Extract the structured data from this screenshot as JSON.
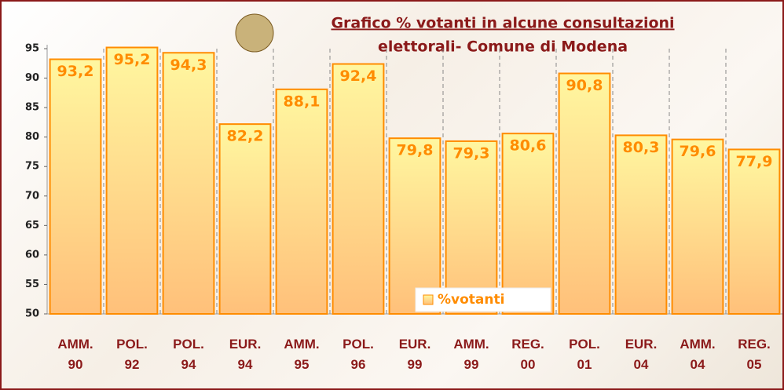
{
  "chart_data": {
    "type": "bar",
    "title": "Grafico % votanti in alcune consultazioni",
    "subtitle": "elettorali- Comune di Modena",
    "categories": [
      "AMM.\n90",
      "POL.\n92",
      "POL.\n94",
      "EUR.\n94",
      "AMM.\n95",
      "POL.\n96",
      "EUR.\n99",
      "AMM.\n99",
      "REG.\n00",
      "POL.\n01",
      "EUR.\n04",
      "AMM.\n04",
      "REG.\n05"
    ],
    "series": [
      {
        "name": "%votanti",
        "color": "#ff8c00",
        "values": [
          93.2,
          95.2,
          94.3,
          82.2,
          88.1,
          92.4,
          79.8,
          79.3,
          80.6,
          90.8,
          80.3,
          79.6,
          77.9
        ],
        "value_labels": [
          "93,2",
          "95,2",
          "94,3",
          "82,2",
          "88,1",
          "92,4",
          "79,8",
          "79,3",
          "80,6",
          "90,8",
          "80,3",
          "79,6",
          "77,9"
        ]
      }
    ],
    "ylim": [
      50,
      95
    ],
    "yticks": [
      50,
      55,
      60,
      65,
      70,
      75,
      80,
      85,
      90,
      95
    ],
    "legend": "bottom-center"
  }
}
